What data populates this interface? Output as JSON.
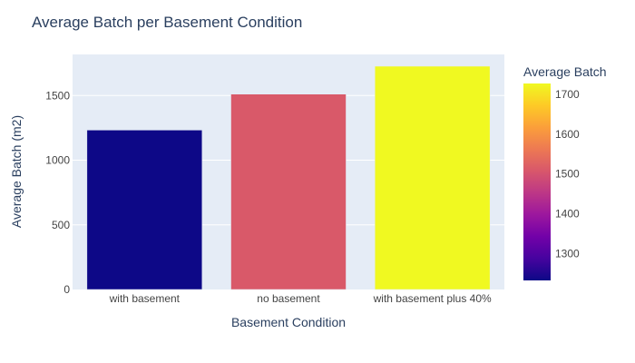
{
  "chart_data": {
    "type": "bar",
    "title": "Average Batch per Basement Condition",
    "xlabel": "Basement Condition",
    "ylabel": "Average Batch (m2)",
    "categories": [
      "with basement",
      "no basement",
      "with basement plus 40%"
    ],
    "values": [
      1233,
      1511,
      1727
    ],
    "ylim": [
      0,
      1818
    ],
    "yticks": [
      0,
      500,
      1000,
      1500
    ],
    "grid": true,
    "colorbar": {
      "title": "Average Batch",
      "range": [
        1233,
        1727
      ],
      "ticks": [
        1300,
        1400,
        1500,
        1600,
        1700
      ],
      "colorscale": [
        "#0d0887",
        "#46039f",
        "#7201a8",
        "#9c179e",
        "#bd3786",
        "#d8576b",
        "#ed7953",
        "#fb9f3a",
        "#fdca26",
        "#f0f921"
      ]
    },
    "colors": {
      "plot_bg": "#e5ecf6",
      "grid": "#ffffff",
      "text": "#2a3f5f",
      "tick_text": "#444444"
    }
  }
}
